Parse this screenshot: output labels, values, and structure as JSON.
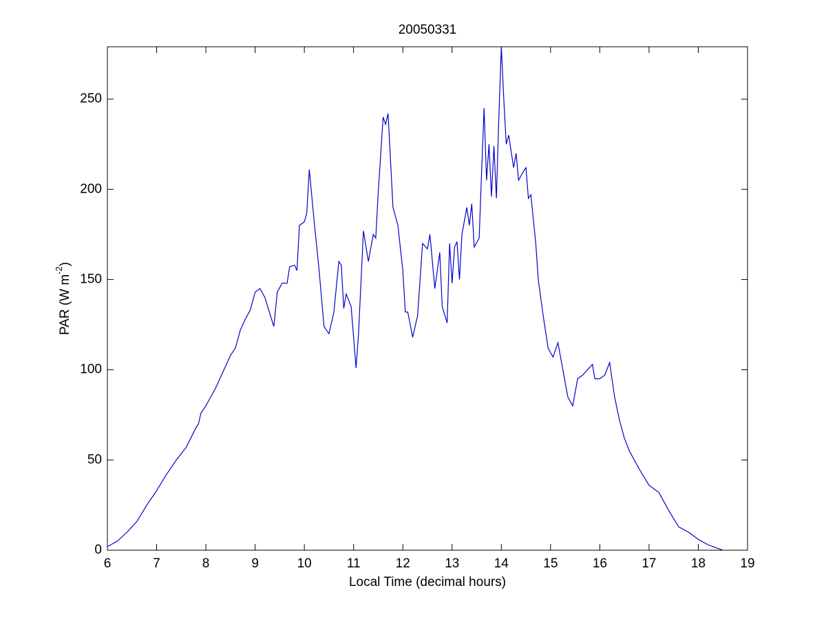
{
  "chart_data": {
    "type": "line",
    "title": "20050331",
    "x_label": "Local Time (decimal hours)",
    "y_label": {
      "text": "PAR (W m",
      "superscript": "-2",
      "suffix": ")"
    },
    "color": "#0000c8",
    "x": [
      6.0,
      6.2,
      6.4,
      6.6,
      6.8,
      7.0,
      7.2,
      7.4,
      7.6,
      7.8,
      7.85,
      7.9,
      8.0,
      8.2,
      8.4,
      8.5,
      8.6,
      8.7,
      8.8,
      8.9,
      9.0,
      9.1,
      9.2,
      9.3,
      9.38,
      9.45,
      9.55,
      9.65,
      9.7,
      9.8,
      9.85,
      9.9,
      10.0,
      10.05,
      10.1,
      10.2,
      10.3,
      10.4,
      10.5,
      10.6,
      10.7,
      10.75,
      10.8,
      10.85,
      10.95,
      11.05,
      11.1,
      11.2,
      11.3,
      11.4,
      11.45,
      11.5,
      11.6,
      11.65,
      11.7,
      11.8,
      11.9,
      12.0,
      12.05,
      12.1,
      12.2,
      12.3,
      12.4,
      12.5,
      12.55,
      12.6,
      12.65,
      12.75,
      12.8,
      12.9,
      12.95,
      13.0,
      13.05,
      13.1,
      13.15,
      13.2,
      13.3,
      13.35,
      13.4,
      13.45,
      13.55,
      13.6,
      13.65,
      13.7,
      13.75,
      13.8,
      13.85,
      13.9,
      13.95,
      14.0,
      14.05,
      14.1,
      14.15,
      14.25,
      14.3,
      14.35,
      14.45,
      14.5,
      14.55,
      14.6,
      14.7,
      14.75,
      14.85,
      14.95,
      15.05,
      15.15,
      15.25,
      15.35,
      15.45,
      15.55,
      15.65,
      15.75,
      15.85,
      15.9,
      16.0,
      16.1,
      16.2,
      16.3,
      16.4,
      16.5,
      16.6,
      16.8,
      17.0,
      17.2,
      17.4,
      17.6,
      17.8,
      18.0,
      18.2,
      18.4,
      18.5
    ],
    "values": [
      2,
      5,
      10,
      16,
      25,
      33,
      42,
      50,
      57,
      68,
      70,
      76,
      80,
      90,
      102,
      108,
      112,
      122,
      128,
      133,
      143,
      145,
      140,
      131,
      124,
      143,
      148,
      148,
      157,
      158,
      155,
      180,
      182,
      187,
      211,
      182,
      155,
      124,
      120,
      132,
      160,
      158,
      134,
      142,
      135,
      101,
      120,
      177,
      160,
      175,
      173,
      198,
      240,
      236,
      242,
      190,
      180,
      155,
      132,
      132,
      118,
      130,
      170,
      167,
      175,
      160,
      145,
      165,
      135,
      126,
      170,
      148,
      168,
      171,
      150,
      175,
      190,
      180,
      192,
      168,
      173,
      210,
      245,
      205,
      225,
      196,
      224,
      195,
      240,
      279,
      250,
      225,
      230,
      212,
      220,
      205,
      210,
      212,
      195,
      197,
      170,
      150,
      130,
      112,
      107,
      115,
      100,
      85,
      80,
      95,
      97,
      100,
      103,
      95,
      95,
      97,
      104,
      85,
      72,
      62,
      55,
      45,
      36,
      32,
      22,
      13,
      10,
      6,
      3,
      1,
      0
    ],
    "xlim": [
      6,
      19
    ],
    "xticks": [
      6,
      7,
      8,
      9,
      10,
      11,
      12,
      13,
      14,
      15,
      16,
      17,
      18,
      19
    ],
    "ylim": [
      0,
      279
    ],
    "yticks": [
      0,
      50,
      100,
      150,
      200,
      250
    ]
  }
}
